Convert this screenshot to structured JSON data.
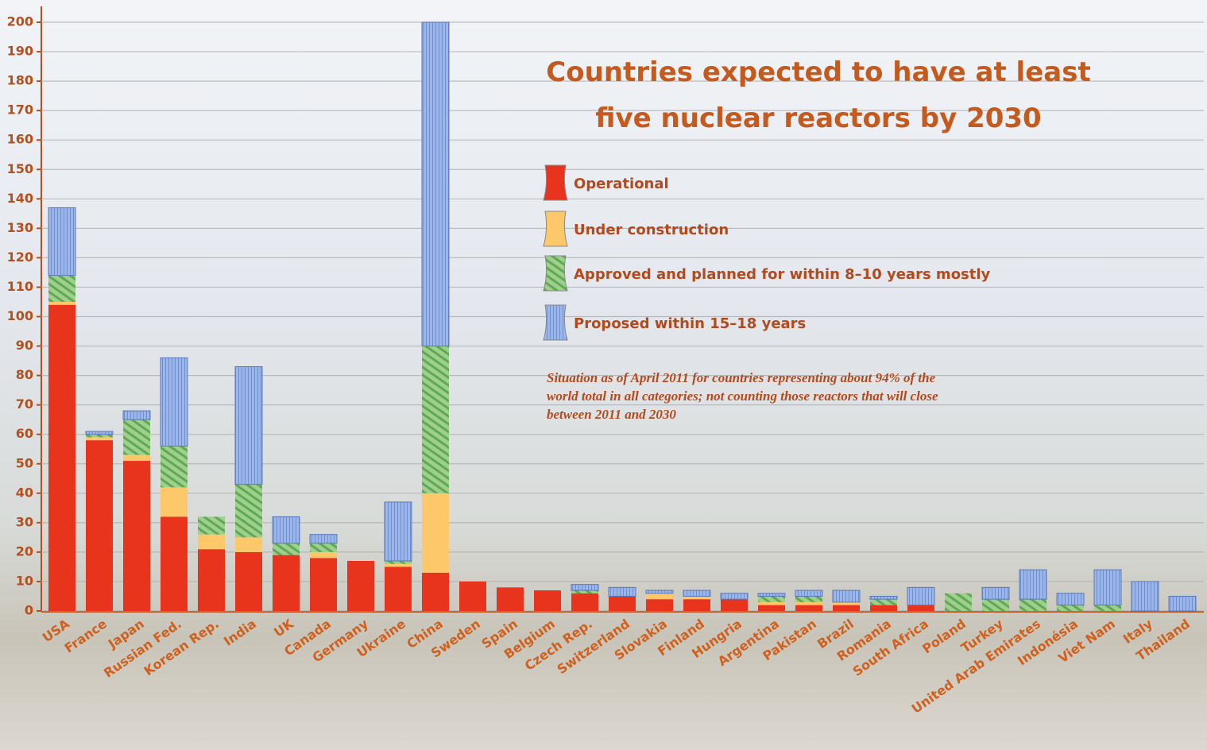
{
  "chart_data": {
    "type": "bar",
    "stacked": true,
    "title": "Countries expected to have at least five nuclear reactors by 2030",
    "note": "Situation as of April 2011 for countries representing about 94% of the world total in all categories; not counting those reactors that will close between 2011 and 2030",
    "categories": [
      "USA",
      "France",
      "Japan",
      "Russian Fed.",
      "Korean Rep.",
      "India",
      "UK",
      "Canada",
      "Germany",
      "Ukraine",
      "China",
      "Sweden",
      "Spain",
      "Belgium",
      "Czech Rep.",
      "Switzerland",
      "Slovakia",
      "Finland",
      "Hungria",
      "Argentina",
      "Pakistan",
      "Brazil",
      "Romania",
      "South Africa",
      "Poland",
      "Turkey",
      "United Arab Emirates",
      "Indonésia",
      "Viet Nam",
      "Italy",
      "Thailand"
    ],
    "series": [
      {
        "name": "Operational",
        "color": "#e8341c",
        "values": [
          104,
          58,
          51,
          32,
          21,
          20,
          19,
          18,
          17,
          15,
          13,
          10,
          8,
          7,
          6,
          5,
          4,
          4,
          4,
          2,
          2,
          2,
          2,
          2,
          0,
          0,
          0,
          0,
          0,
          0,
          0
        ]
      },
      {
        "name": "Under construction",
        "color": "#fcc86a",
        "values": [
          1,
          1,
          2,
          10,
          5,
          5,
          0,
          2,
          0,
          1,
          27,
          0,
          0,
          0,
          0,
          0,
          2,
          1,
          0,
          1,
          1,
          1,
          0,
          0,
          0,
          0,
          0,
          0,
          0,
          0,
          0
        ]
      },
      {
        "name": "Approved and planned for within 8–10 years mostly",
        "color": "#8fcb7e",
        "values": [
          9,
          1,
          12,
          14,
          6,
          18,
          4,
          3,
          0,
          1,
          50,
          0,
          0,
          0,
          1,
          0,
          0,
          0,
          0,
          2,
          2,
          0,
          2,
          0,
          6,
          4,
          4,
          2,
          2,
          0,
          0
        ]
      },
      {
        "name": "Proposed within 15–18 years",
        "color": "#9db6e6",
        "values": [
          23,
          1,
          3,
          30,
          0,
          40,
          9,
          3,
          0,
          20,
          110,
          0,
          0,
          0,
          2,
          3,
          1,
          2,
          2,
          1,
          2,
          4,
          1,
          6,
          0,
          4,
          10,
          4,
          12,
          10,
          5
        ]
      }
    ],
    "ylim": [
      0,
      200
    ],
    "yticks": [
      0,
      10,
      20,
      30,
      40,
      50,
      60,
      70,
      80,
      90,
      100,
      110,
      120,
      130,
      140,
      150,
      160,
      170,
      180,
      190,
      200
    ],
    "grid": true
  }
}
